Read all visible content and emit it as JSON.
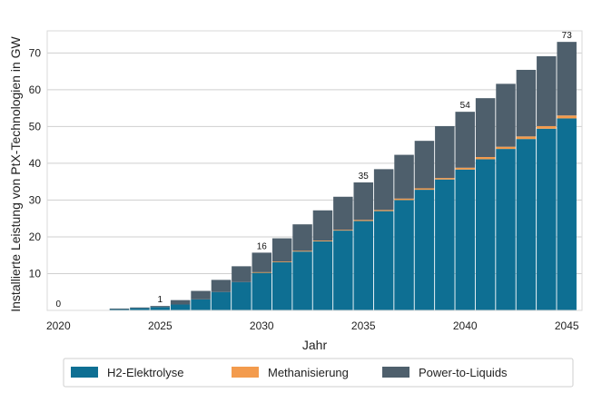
{
  "chart_data": {
    "type": "bar",
    "stacked": true,
    "title": "",
    "xlabel": "Jahr",
    "ylabel": "Installierte Leistung von PtX-Technologien in GW",
    "ylim": [
      0,
      76
    ],
    "yticks": [
      10,
      20,
      30,
      40,
      50,
      60,
      70
    ],
    "xticks": [
      2020,
      2025,
      2030,
      2035,
      2040,
      2045
    ],
    "grid": "horizontal",
    "legend_position": "bottom",
    "colors": {
      "H2-Elektrolyse": "#0e6f93",
      "Methanisierung": "#f39b4d",
      "Power-to-Liquids": "#4e5f6c"
    },
    "categories": [
      2020,
      2021,
      2022,
      2023,
      2024,
      2025,
      2026,
      2027,
      2028,
      2029,
      2030,
      2031,
      2032,
      2033,
      2034,
      2035,
      2036,
      2037,
      2038,
      2039,
      2040,
      2041,
      2042,
      2043,
      2044,
      2045
    ],
    "series": [
      {
        "name": "H2-Elektrolyse",
        "values": [
          0,
          0,
          0,
          0.4,
          0.6,
          0.9,
          1.6,
          3.0,
          5.0,
          7.7,
          10.3,
          13.2,
          16.0,
          18.8,
          21.7,
          24.3,
          27.0,
          30.0,
          32.8,
          35.6,
          38.3,
          41.1,
          43.9,
          46.6,
          49.4,
          52.2
        ]
      },
      {
        "name": "Methanisierung",
        "values": [
          0,
          0,
          0,
          0,
          0,
          0,
          0,
          0,
          0,
          0,
          0.1,
          0.1,
          0.2,
          0.2,
          0.2,
          0.3,
          0.3,
          0.4,
          0.4,
          0.4,
          0.5,
          0.6,
          0.6,
          0.7,
          0.7,
          0.8
        ]
      },
      {
        "name": "Power-to-Liquids",
        "values": [
          0,
          0,
          0,
          0.1,
          0.2,
          0.3,
          1.2,
          2.3,
          3.3,
          4.3,
          5.3,
          6.3,
          7.2,
          8.2,
          9.0,
          10.2,
          11.1,
          11.9,
          12.9,
          14.1,
          15.2,
          16.0,
          17.1,
          18.1,
          19.0,
          20.0
        ]
      }
    ],
    "data_labels": [
      {
        "x": 2020,
        "y": 0,
        "text": "0"
      },
      {
        "x": 2025,
        "y": 1.2,
        "text": "1"
      },
      {
        "x": 2030,
        "y": 15.7,
        "text": "16"
      },
      {
        "x": 2035,
        "y": 34.8,
        "text": "35"
      },
      {
        "x": 2040,
        "y": 54.0,
        "text": "54"
      },
      {
        "x": 2045,
        "y": 73.0,
        "text": "73"
      }
    ]
  }
}
